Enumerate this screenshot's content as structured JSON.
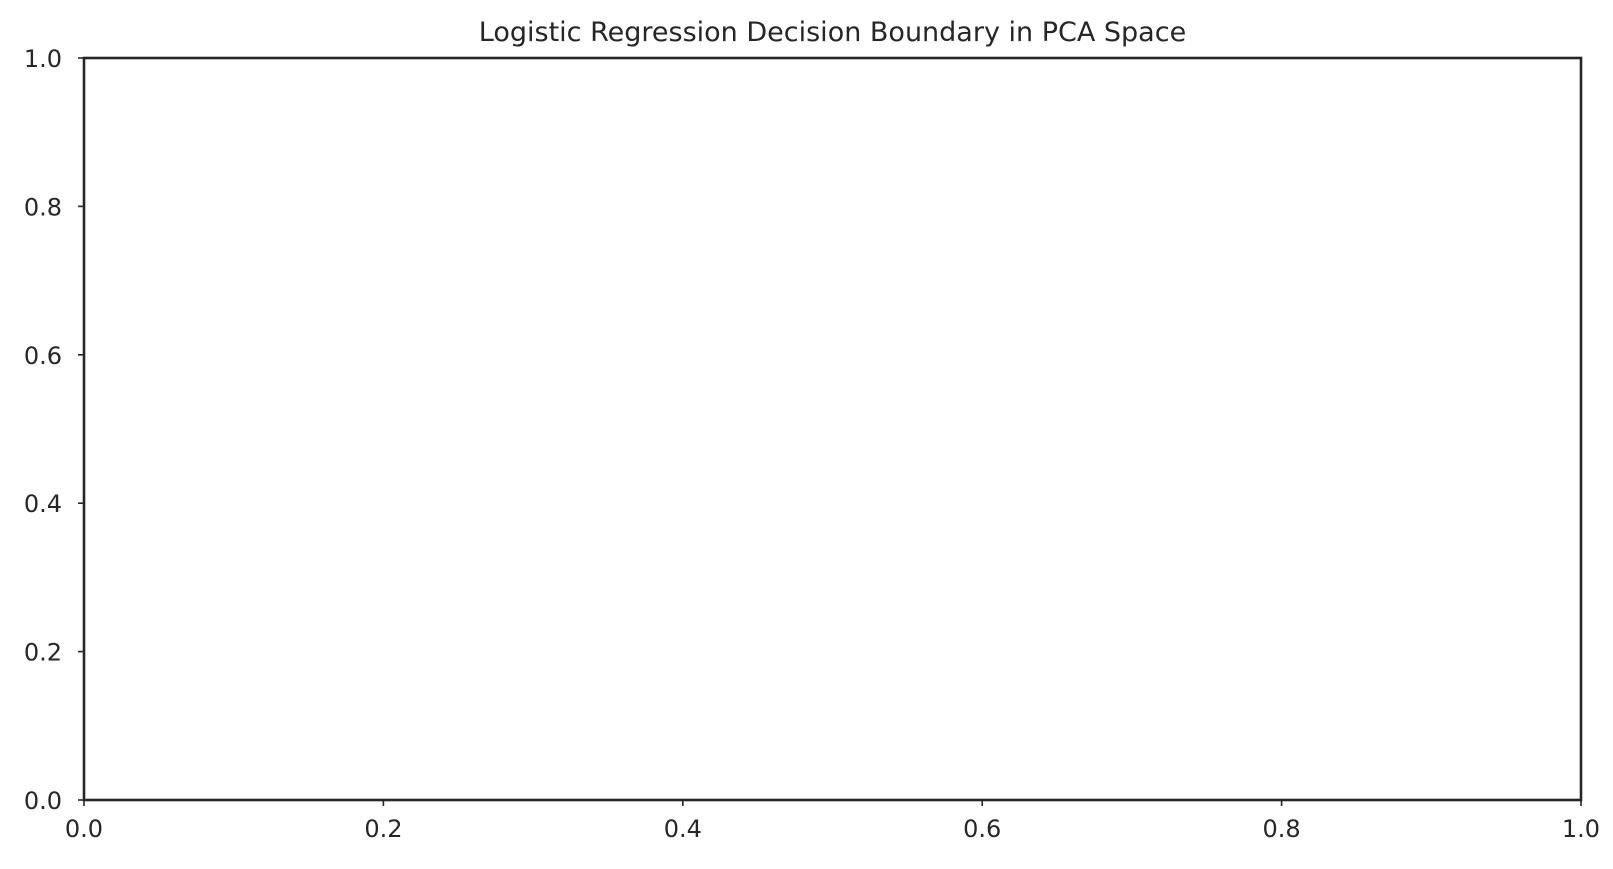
{
  "chart_data": {
    "type": "scatter",
    "title": "Logistic Regression Decision Boundary in PCA Space",
    "xlabel": "",
    "ylabel": "",
    "xlim": [
      0.0,
      1.0
    ],
    "ylim": [
      0.0,
      1.0
    ],
    "x_ticks": [
      "0.0",
      "0.2",
      "0.4",
      "0.6",
      "0.8",
      "1.0"
    ],
    "y_ticks": [
      "0.0",
      "0.2",
      "0.4",
      "0.6",
      "0.8",
      "1.0"
    ],
    "series": [],
    "grid": false,
    "legend": "none",
    "colors": {
      "frame": "#262626",
      "text": "#262626",
      "background": "#ffffff"
    }
  }
}
